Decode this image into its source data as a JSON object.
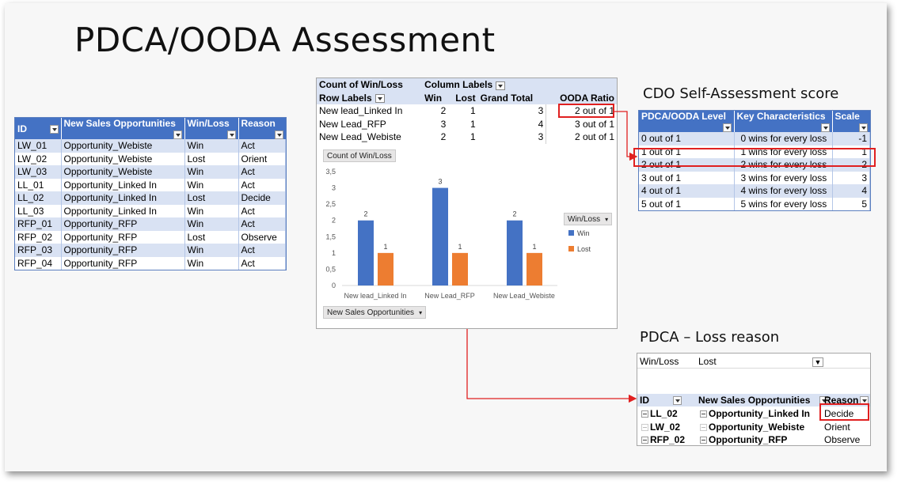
{
  "slide": {
    "title": "PDCA/OODA Assessment"
  },
  "opportunities_table": {
    "headers": [
      "ID",
      "New Sales Opportunities",
      "Win/Loss",
      "Reason"
    ],
    "rows": [
      [
        "LW_01",
        "Opportunity_Webiste",
        "Win",
        "Act"
      ],
      [
        "LW_02",
        "Opportunity_Webiste",
        "Lost",
        "Orient"
      ],
      [
        "LW_03",
        "Opportunity_Webiste",
        "Win",
        "Act"
      ],
      [
        "LL_01",
        "Opportunity_Linked In",
        "Win",
        "Act"
      ],
      [
        "LL_02",
        "Opportunity_Linked In",
        "Lost",
        "Decide"
      ],
      [
        "LL_03",
        "Opportunity_Linked In",
        "Win",
        "Act"
      ],
      [
        "RFP_01",
        "Opportunity_RFP",
        "Win",
        "Act"
      ],
      [
        "RFP_02",
        "Opportunity_RFP",
        "Lost",
        "Observe"
      ],
      [
        "RFP_03",
        "Opportunity_RFP",
        "Win",
        "Act"
      ],
      [
        "RFP_04",
        "Opportunity_RFP",
        "Win",
        "Act"
      ]
    ]
  },
  "pivot": {
    "corner": "Count of Win/Loss",
    "column_labels": "Column Labels",
    "row_labels": "Row Labels",
    "col_win": "Win",
    "col_lost": "Lost",
    "col_total": "Grand Total",
    "col_ratio": "OODA Ratio",
    "rows": [
      {
        "label": "New lead_Linked In",
        "win": "2",
        "lost": "1",
        "total": "3",
        "ratio": "2 out of 1"
      },
      {
        "label": "New Lead_RFP",
        "win": "3",
        "lost": "1",
        "total": "4",
        "ratio": "3 out of 1"
      },
      {
        "label": "New Lead_Webiste",
        "win": "2",
        "lost": "1",
        "total": "3",
        "ratio": "2 out of 1"
      }
    ],
    "chart_tag": "Count of Win/Loss",
    "axis_tag": "New Sales Opportunities",
    "legend_title": "Win/Loss"
  },
  "chart_data": {
    "type": "bar",
    "categories": [
      "New lead_Linked In",
      "New Lead_RFP",
      "New Lead_Webiste"
    ],
    "series": [
      {
        "name": "Win",
        "values": [
          2,
          3,
          2
        ],
        "color": "#4472c4"
      },
      {
        "name": "Lost",
        "values": [
          1,
          1,
          1
        ],
        "color": "#ed7d31"
      }
    ],
    "ylim": [
      0,
      3.5
    ],
    "yticks": [
      "0",
      "0,5",
      "1",
      "1,5",
      "2",
      "2,5",
      "3",
      "3,5"
    ],
    "data_labels": true,
    "legend": "right",
    "grid": false
  },
  "score": {
    "caption": "CDO Self-Assessment score",
    "headers": [
      "PDCA/OODA Level",
      "Key Characteristics",
      "Scale"
    ],
    "rows": [
      [
        "0 out of 1",
        "0 wins for every loss",
        "-1"
      ],
      [
        "1 out of 1",
        "1 wins for every loss",
        "1"
      ],
      [
        "2 out of 1",
        "2 wins for every loss",
        "2"
      ],
      [
        "3 out of 1",
        "3 wins for every loss",
        "3"
      ],
      [
        "4 out of 1",
        "4 wins for every loss",
        "4"
      ],
      [
        "5 out of 1",
        "5 wins for every loss",
        "5"
      ]
    ]
  },
  "loss": {
    "caption": "PDCA – Loss reason",
    "filter_label": "Win/Loss",
    "filter_value": "Lost",
    "filter_icon": "▼̩",
    "headers": [
      "ID",
      "New Sales Opportunities",
      "Reason"
    ],
    "rows": [
      [
        "LL_02",
        "Opportunity_Linked In",
        "Decide"
      ],
      [
        "LW_02",
        "Opportunity_Webiste",
        "Orient"
      ],
      [
        "RFP_02",
        "Opportunity_RFP",
        "Observe"
      ]
    ]
  },
  "colors": {
    "win": "#4472c4",
    "lost": "#ed7d31",
    "highlight": "#e02020",
    "header": "#4472c4",
    "band": "#d9e2f3"
  }
}
